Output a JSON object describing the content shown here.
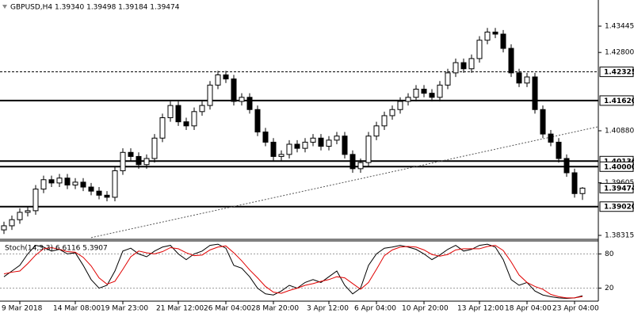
{
  "chart_data": [
    {
      "type": "candlestick",
      "title": "GBPUSD,H4  1.39340 1.39498 1.39184 1.39474",
      "open": [
        1.3845,
        1.3855,
        1.387,
        1.3888,
        1.3892,
        1.3945,
        1.3968,
        1.396,
        1.3972,
        1.3955,
        1.3962,
        1.395,
        1.394,
        1.393,
        1.3925,
        1.399,
        1.4035,
        1.4025,
        1.4005,
        1.402,
        1.407,
        1.412,
        1.415,
        1.411,
        1.41,
        1.4135,
        1.415,
        1.42,
        1.4225,
        1.4215,
        1.416,
        1.417,
        1.414,
        1.4085,
        1.406,
        1.4025,
        1.403,
        1.4055,
        1.4045,
        1.406,
        1.407,
        1.405,
        1.4065,
        1.4075,
        1.403,
        1.3995,
        1.401,
        1.4075,
        1.41,
        1.4125,
        1.414,
        1.416,
        1.417,
        1.419,
        1.418,
        1.417,
        1.42,
        1.423,
        1.4255,
        1.424,
        1.4265,
        1.431,
        1.433,
        1.4325,
        1.429,
        1.423,
        1.4205,
        1.422,
        1.414,
        1.408,
        1.406,
        1.402,
        1.3985,
        1.3934
      ],
      "high": [
        1.3865,
        1.388,
        1.3898,
        1.3902,
        1.3955,
        1.3978,
        1.3978,
        1.3982,
        1.3982,
        1.3972,
        1.3972,
        1.396,
        1.395,
        1.394,
        1.4,
        1.4045,
        1.4045,
        1.4035,
        1.403,
        1.408,
        1.413,
        1.416,
        1.416,
        1.412,
        1.4145,
        1.416,
        1.421,
        1.4235,
        1.4235,
        1.4225,
        1.418,
        1.418,
        1.415,
        1.4095,
        1.407,
        1.404,
        1.4065,
        1.4065,
        1.407,
        1.408,
        1.408,
        1.4075,
        1.4085,
        1.4085,
        1.404,
        1.402,
        1.4085,
        1.411,
        1.4135,
        1.415,
        1.417,
        1.418,
        1.42,
        1.42,
        1.419,
        1.421,
        1.424,
        1.4265,
        1.4265,
        1.4275,
        1.432,
        1.434,
        1.434,
        1.4335,
        1.43,
        1.424,
        1.423,
        1.423,
        1.415,
        1.409,
        1.407,
        1.403,
        1.3995,
        1.39498
      ],
      "low": [
        1.3835,
        1.3845,
        1.386,
        1.3878,
        1.3882,
        1.3935,
        1.395,
        1.395,
        1.3945,
        1.3945,
        1.394,
        1.393,
        1.392,
        1.3915,
        1.3915,
        1.398,
        1.4015,
        1.3995,
        1.3995,
        1.401,
        1.406,
        1.411,
        1.41,
        1.409,
        1.409,
        1.4125,
        1.414,
        1.419,
        1.4205,
        1.415,
        1.415,
        1.413,
        1.4075,
        1.405,
        1.4015,
        1.4015,
        1.402,
        1.4035,
        1.4035,
        1.405,
        1.404,
        1.404,
        1.4055,
        1.402,
        1.3985,
        1.3985,
        1.4,
        1.4065,
        1.409,
        1.4115,
        1.413,
        1.415,
        1.416,
        1.417,
        1.416,
        1.416,
        1.419,
        1.422,
        1.423,
        1.423,
        1.4255,
        1.43,
        1.4315,
        1.428,
        1.422,
        1.4195,
        1.4195,
        1.413,
        1.407,
        1.405,
        1.401,
        1.3975,
        1.3924,
        1.39184
      ],
      "close": [
        1.3855,
        1.387,
        1.3888,
        1.3892,
        1.3945,
        1.3968,
        1.396,
        1.3972,
        1.3955,
        1.3962,
        1.395,
        1.394,
        1.393,
        1.3925,
        1.399,
        1.4035,
        1.4025,
        1.4005,
        1.402,
        1.407,
        1.412,
        1.415,
        1.411,
        1.41,
        1.4135,
        1.415,
        1.42,
        1.4225,
        1.4215,
        1.416,
        1.417,
        1.414,
        1.4085,
        1.406,
        1.4025,
        1.403,
        1.4055,
        1.4045,
        1.406,
        1.407,
        1.405,
        1.4065,
        1.4075,
        1.403,
        1.3995,
        1.401,
        1.4075,
        1.41,
        1.4125,
        1.414,
        1.416,
        1.417,
        1.419,
        1.418,
        1.417,
        1.42,
        1.423,
        1.4255,
        1.424,
        1.4265,
        1.431,
        1.433,
        1.4325,
        1.429,
        1.423,
        1.4205,
        1.422,
        1.414,
        1.408,
        1.406,
        1.402,
        1.3985,
        1.3934,
        1.39474
      ],
      "ylim": [
        1.38257,
        1.44086
      ],
      "yticks": [
        1.43445,
        {
          "value": 1.428,
          "label": "1.42800"
        },
        {
          "value": 1.4088,
          "label": "1.40880"
        },
        1.39605,
        1.38315
      ],
      "xticks": [
        {
          "value": 2,
          "label": "9 Mar 2018"
        },
        {
          "value": 9,
          "label": "14 Mar 08:00"
        },
        {
          "value": 15,
          "label": "19 Mar 23:00"
        },
        {
          "value": 22,
          "label": "21 Mar 12:00"
        },
        {
          "value": 28,
          "label": "26 Mar 04:00"
        },
        {
          "value": 34,
          "label": "28 Mar 20:00"
        },
        {
          "value": 41,
          "label": "3 Apr 12:00"
        },
        {
          "value": 47,
          "label": "6 Apr 04:00"
        },
        {
          "value": 53,
          "label": "10 Apr 20:00"
        },
        {
          "value": 60,
          "label": "13 Apr 12:00"
        },
        {
          "value": 66,
          "label": "18 Apr 04:00"
        },
        {
          "value": 72,
          "label": "23 Apr 04:00"
        }
      ],
      "levels": [
        {
          "value": 1.42325,
          "label": "1.42325",
          "style": "dashed"
        },
        {
          "value": 1.4162,
          "label": "1.41620",
          "style": "solid"
        },
        {
          "value": 1.40136,
          "label": "1.40136",
          "style": "solid"
        },
        {
          "value": 1.4,
          "label": "1.40000",
          "style": "solid"
        },
        {
          "value": 1.3902,
          "label": "1.39020",
          "style": "solid"
        }
      ],
      "trendline": {
        "x": [
          11,
          75
        ],
        "y": [
          1.3826,
          1.4098
        ]
      }
    },
    {
      "type": "line",
      "title": "Stoch(14,3,3) 6.6116 5.3907",
      "ylim": [
        0,
        100
      ],
      "yticks": [
        80,
        20
      ],
      "series": [
        {
          "color": "#000000",
          "values": [
            40,
            50,
            60,
            80,
            95,
            92,
            85,
            88,
            80,
            82,
            60,
            35,
            20,
            25,
            50,
            85,
            90,
            80,
            75,
            85,
            92,
            95,
            80,
            70,
            80,
            85,
            95,
            97,
            90,
            60,
            55,
            40,
            20,
            10,
            8,
            15,
            25,
            20,
            30,
            35,
            30,
            40,
            50,
            25,
            10,
            20,
            60,
            80,
            90,
            92,
            95,
            92,
            88,
            80,
            70,
            78,
            88,
            95,
            85,
            88,
            95,
            97,
            92,
            70,
            35,
            25,
            30,
            15,
            8,
            5,
            3,
            2,
            3,
            6.6116
          ]
        },
        {
          "color": "#e00000",
          "values": [
            45,
            48,
            50,
            63,
            78,
            89,
            91,
            88,
            84,
            83,
            74,
            59,
            38,
            27,
            32,
            53,
            75,
            85,
            82,
            80,
            84,
            91,
            89,
            82,
            77,
            78,
            87,
            92,
            94,
            82,
            68,
            52,
            38,
            23,
            13,
            11,
            16,
            20,
            25,
            28,
            32,
            35,
            40,
            38,
            28,
            18,
            30,
            53,
            77,
            87,
            92,
            93,
            92,
            87,
            79,
            76,
            79,
            87,
            89,
            89,
            89,
            93,
            95,
            86,
            66,
            43,
            30,
            23,
            18,
            9,
            5,
            3,
            3,
            5.3907
          ]
        }
      ]
    }
  ]
}
